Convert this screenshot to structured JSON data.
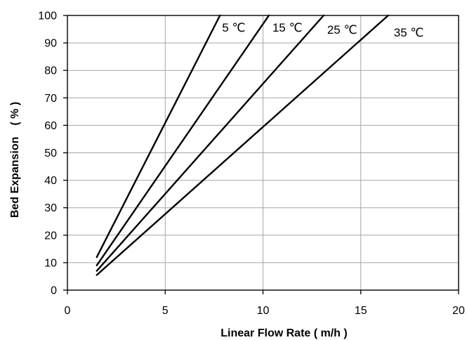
{
  "chart_data": {
    "type": "line",
    "xlabel": "Linear Flow Rate ( m/h )",
    "ylabel": "Bed Expansion (%)",
    "ylabel_parts": [
      "Bed Expansion",
      "( % )"
    ],
    "xlim": [
      0,
      20
    ],
    "ylim": [
      0,
      100
    ],
    "xticks": [
      0,
      5,
      10,
      15,
      20
    ],
    "yticks": [
      0,
      10,
      20,
      30,
      40,
      50,
      60,
      70,
      80,
      90,
      100
    ],
    "grid": true,
    "legend": "none",
    "series": [
      {
        "name": "5 ℃",
        "x": [
          1.5,
          7.8
        ],
        "y": [
          12,
          100
        ]
      },
      {
        "name": "15 ℃",
        "x": [
          1.5,
          10.3
        ],
        "y": [
          9,
          100
        ]
      },
      {
        "name": "25 ℃",
        "x": [
          1.5,
          13.1
        ],
        "y": [
          7,
          100
        ]
      },
      {
        "name": "35 ℃",
        "x": [
          1.5,
          16.4
        ],
        "y": [
          5.5,
          100
        ]
      }
    ],
    "colors": {
      "line": "#000000",
      "grid": "#a6a6a6",
      "axis": "#000000"
    }
  }
}
